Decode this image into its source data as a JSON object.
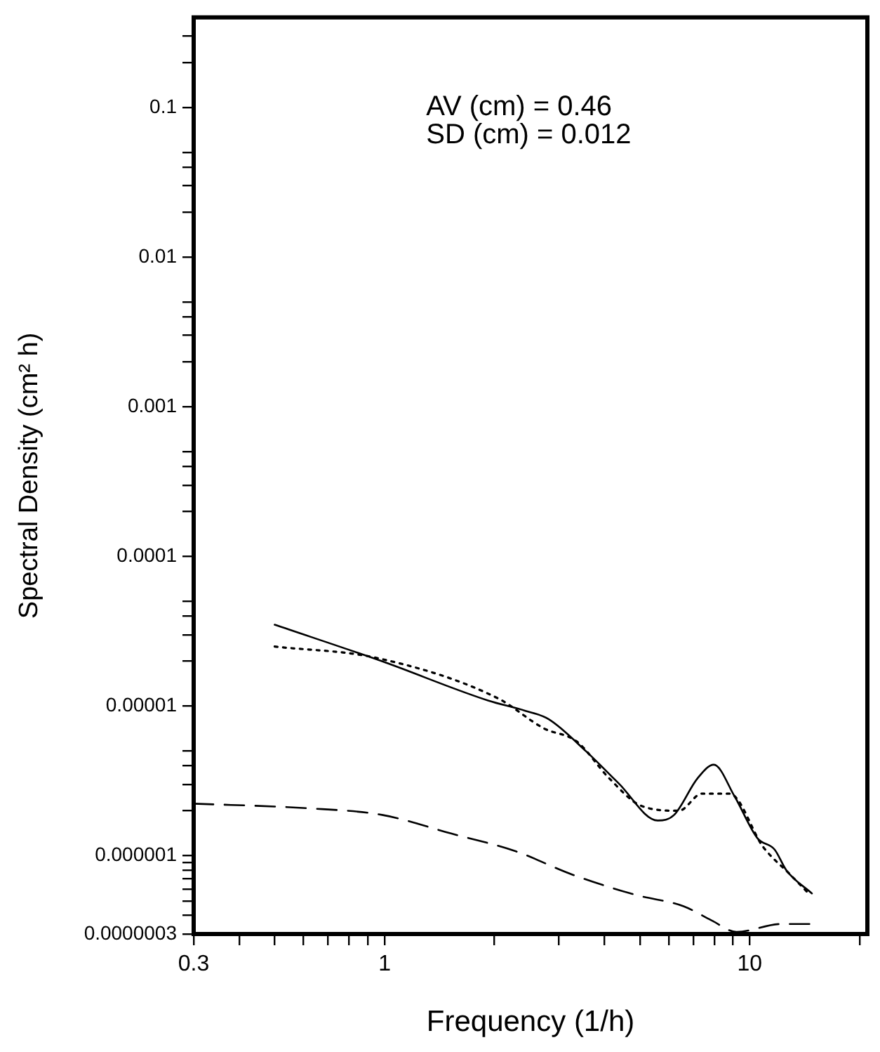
{
  "chart_data": {
    "type": "line",
    "xlabel": "Frequency (1/h)",
    "ylabel": "Spectral Density (cm² h)",
    "log": "xy",
    "annotations": [
      "AV (cm) = 0.46",
      "SD (cm) = 0.012"
    ],
    "xlim": [
      0.3,
      21
    ],
    "ylim": [
      3e-07,
      0.4
    ],
    "xticks": [
      0.3,
      {
        "value": 0.4,
        "label": null
      },
      {
        "value": 0.5,
        "label": null
      },
      {
        "value": 0.6,
        "label": null
      },
      {
        "value": 0.7,
        "label": null
      },
      {
        "value": 0.8,
        "label": null
      },
      {
        "value": 0.9,
        "label": null
      },
      1,
      {
        "value": 2,
        "label": null
      },
      {
        "value": 3,
        "label": null
      },
      {
        "value": 4,
        "label": null
      },
      {
        "value": 5,
        "label": null
      },
      {
        "value": 6,
        "label": null
      },
      {
        "value": 7,
        "label": null
      },
      {
        "value": 8,
        "label": null
      },
      {
        "value": 9,
        "label": null
      },
      10,
      {
        "value": 20,
        "label": null
      }
    ],
    "yticks": [
      {
        "value": 3e-07,
        "label": "0.0000003"
      },
      {
        "value": 4e-07,
        "label": null
      },
      {
        "value": 5e-07,
        "label": null
      },
      {
        "value": 6e-07,
        "label": null
      },
      {
        "value": 7e-07,
        "label": null
      },
      {
        "value": 8e-07,
        "label": null
      },
      {
        "value": 9e-07,
        "label": null
      },
      {
        "value": 1e-06,
        "label": "0.000001"
      },
      {
        "value": 2e-06,
        "label": null
      },
      {
        "value": 3e-06,
        "label": null
      },
      {
        "value": 4e-06,
        "label": null
      },
      {
        "value": 5e-06,
        "label": null
      },
      {
        "value": 1e-05,
        "label": "0.00001"
      },
      {
        "value": 2e-05,
        "label": null
      },
      {
        "value": 3e-05,
        "label": null
      },
      {
        "value": 4e-05,
        "label": null
      },
      {
        "value": 5e-05,
        "label": null
      },
      0.0001,
      {
        "value": 0.0002,
        "label": null
      },
      {
        "value": 0.0003,
        "label": null
      },
      {
        "value": 0.0004,
        "label": null
      },
      {
        "value": 0.0005,
        "label": null
      },
      0.001,
      {
        "value": 0.002,
        "label": null
      },
      {
        "value": 0.003,
        "label": null
      },
      {
        "value": 0.004,
        "label": null
      },
      {
        "value": 0.005,
        "label": null
      },
      0.01,
      {
        "value": 0.02,
        "label": null
      },
      {
        "value": 0.03,
        "label": null
      },
      {
        "value": 0.04,
        "label": null
      },
      {
        "value": 0.05,
        "label": null
      },
      0.1,
      {
        "value": 0.2,
        "label": null
      },
      {
        "value": 0.3,
        "label": null
      }
    ],
    "series": [
      {
        "color": "#000000",
        "line_style": "solid",
        "x": [
          0.5,
          0.98,
          1.92,
          2.43,
          2.81,
          3.56,
          4.37,
          5.6,
          6.2,
          7.2,
          7.97,
          9.1,
          10.5,
          11.7,
          12.6,
          14.8
        ],
        "values": [
          3.5e-05,
          2e-05,
          1.09e-05,
          9.3e-06,
          8.2e-06,
          5e-06,
          3.06e-06,
          1.72e-06,
          1.87e-06,
          3.3e-06,
          4.06e-06,
          2.48e-06,
          1.31e-06,
          1.1e-06,
          8e-07,
          5.6e-07
        ]
      },
      {
        "color": "#000000",
        "line_style": "dotted",
        "x": [
          0.5,
          0.95,
          2.04,
          2.73,
          3.36,
          4.12,
          5.06,
          6.4,
          7.4,
          8.8,
          10.9,
          12.9,
          14.4
        ],
        "values": [
          2.5e-05,
          2.1e-05,
          1.13e-05,
          7.1e-06,
          5.8e-06,
          3.3e-06,
          2.15e-06,
          2e-06,
          2.6e-06,
          2.6e-06,
          1.14e-06,
          7.5e-07,
          5.7e-07
        ]
      },
      {
        "color": "#000000",
        "line_style": "dashed",
        "x": [
          0.3,
          0.61,
          0.99,
          1.52,
          2.29,
          3.26,
          4.91,
          6.59,
          7.86,
          9.2,
          12.2,
          14.8
        ],
        "values": [
          2.23e-06,
          2.08e-06,
          1.87e-06,
          1.41e-06,
          1.07e-06,
          7.5e-07,
          5.45e-07,
          4.6e-07,
          3.7e-07,
          3.1e-07,
          3.5e-07,
          3.5e-07
        ]
      }
    ]
  }
}
